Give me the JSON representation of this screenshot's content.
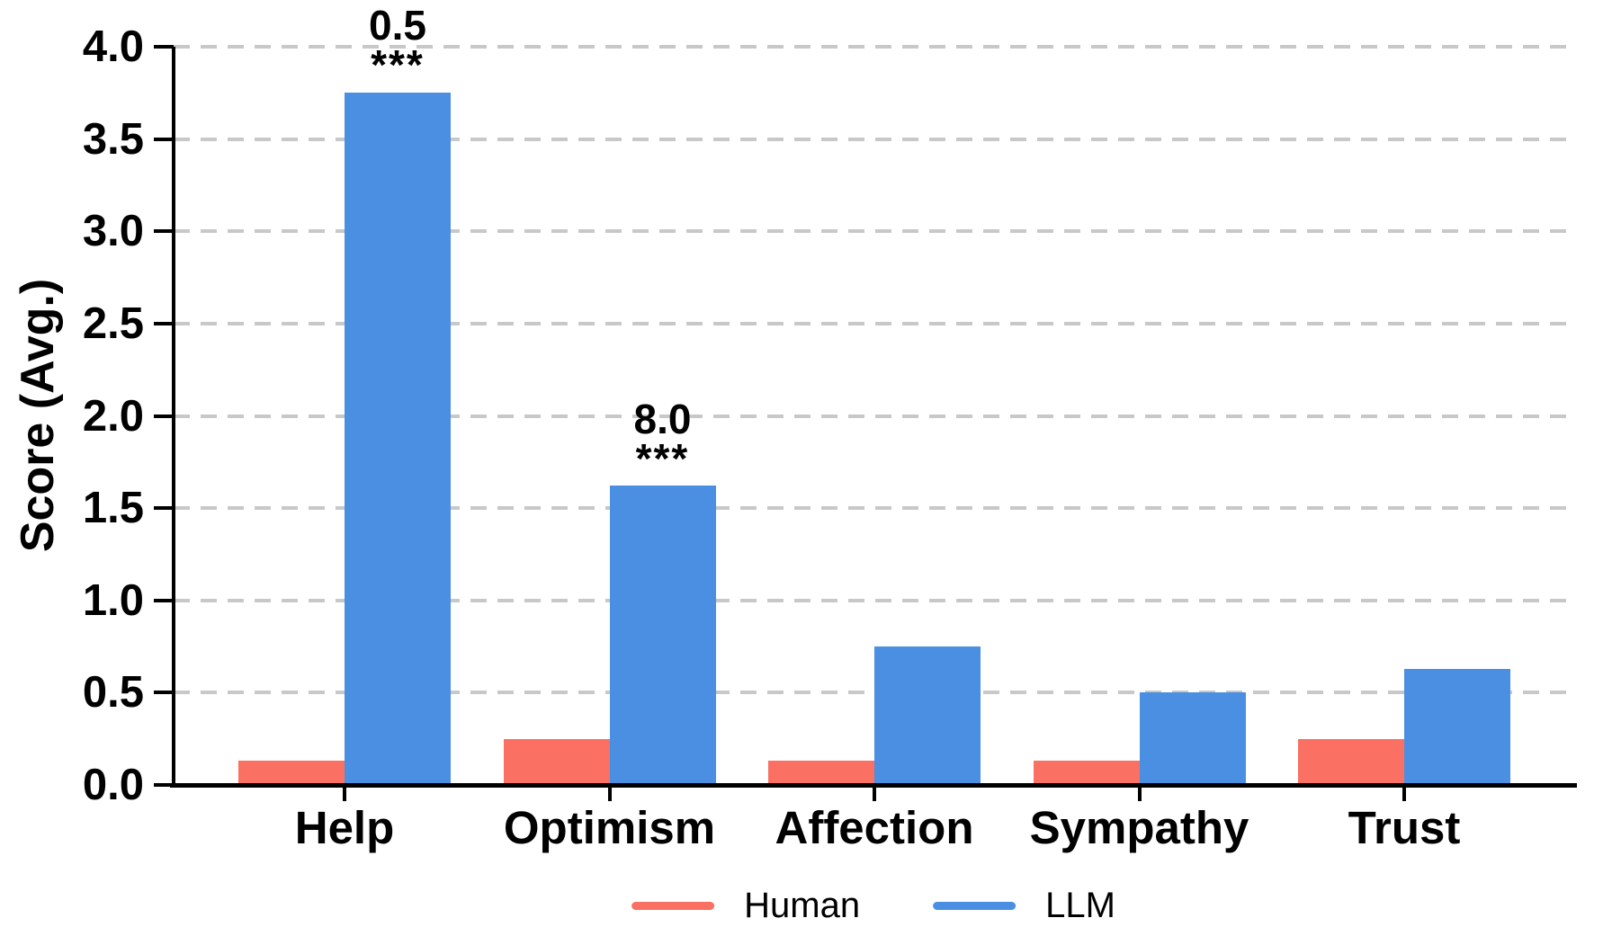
{
  "chart_data": {
    "type": "bar",
    "title": "",
    "categories": [
      "Help",
      "Optimism",
      "Affection",
      "Sympathy",
      "Trust"
    ],
    "series": [
      {
        "name": "Human",
        "color": "#FA7062",
        "values": [
          0.13,
          0.25,
          0.13,
          0.13,
          0.25
        ]
      },
      {
        "name": "LLM",
        "color": "#4A8FE2",
        "values": [
          3.75,
          1.62,
          0.75,
          0.5,
          0.63
        ]
      }
    ],
    "xlabel": "",
    "ylabel": "Score (Avg.)",
    "ylim": [
      0,
      4.15
    ],
    "yticks": {
      "values": [
        0,
        0.5,
        1,
        1.5,
        2,
        2.5,
        3,
        3.5,
        4
      ],
      "labels": [
        "0.0",
        "0.5",
        "1.0",
        "1.5",
        "2.0",
        "2.5",
        "3.0",
        "3.5",
        "4.0"
      ]
    },
    "grid": {
      "axis": "y",
      "style": "dashed",
      "color": "#c8c8c8"
    },
    "legend_position": "bottom-center",
    "annotations": [
      {
        "category": "Help",
        "series": "LLM",
        "value_label": "0.5",
        "significance": "***"
      },
      {
        "category": "Optimism",
        "series": "LLM",
        "value_label": "8.0",
        "significance": "***"
      }
    ]
  }
}
